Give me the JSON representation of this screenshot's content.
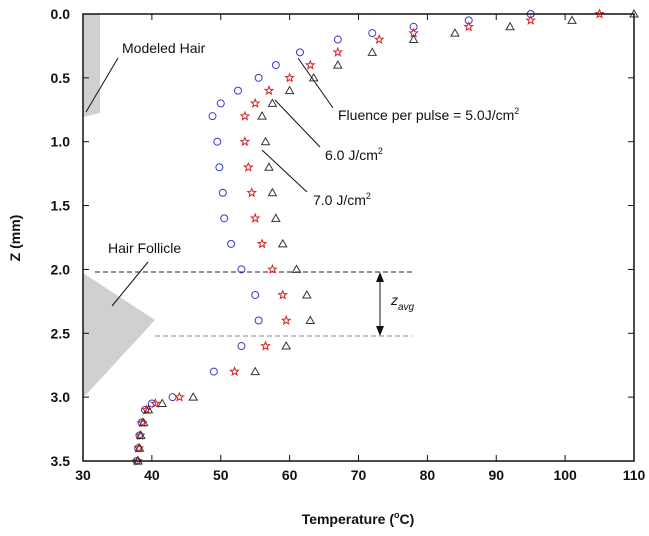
{
  "chart_data": {
    "type": "scatter",
    "x_label": {
      "text": "Temperature (",
      "sup": "o",
      "after": "C)"
    },
    "y_label": "Z (mm)",
    "xlim": [
      30,
      110
    ],
    "ylim": [
      0,
      3.5
    ],
    "y_inverted": true,
    "xticks": [
      30,
      40,
      50,
      60,
      70,
      80,
      90,
      100,
      110
    ],
    "yticks": [
      {
        "value": 0,
        "label": "0.0"
      },
      0.5,
      {
        "value": 1,
        "label": "1.0"
      },
      1.5,
      {
        "value": 2,
        "label": "2.0"
      },
      2.5,
      {
        "value": 3,
        "label": "3.0"
      },
      3.5
    ],
    "series": [
      {
        "color": "#3a3ad0",
        "marker": "circle",
        "x": [
          95,
          86,
          78,
          72,
          67,
          61.5,
          58,
          55.5,
          52.5,
          50,
          48.8,
          49.5,
          49.8,
          50.3,
          50.5,
          51.5,
          53,
          55,
          55.5,
          53,
          49,
          43,
          40,
          39,
          38.5,
          38.2,
          38,
          37.8
        ],
        "y": [
          0,
          0.05,
          0.1,
          0.15,
          0.2,
          0.3,
          0.4,
          0.5,
          0.6,
          0.7,
          0.8,
          1.0,
          1.2,
          1.4,
          1.6,
          1.8,
          2.0,
          2.2,
          2.4,
          2.6,
          2.8,
          3.0,
          3.05,
          3.1,
          3.2,
          3.3,
          3.4,
          3.5
        ]
      },
      {
        "color": "#d62020",
        "marker": "star",
        "x": [
          105,
          95,
          86,
          78,
          73,
          67,
          63,
          60,
          57,
          55,
          53.5,
          53.5,
          54,
          54.5,
          55,
          56,
          57.5,
          59,
          59.5,
          56.5,
          52,
          44,
          40.5,
          39.2,
          38.6,
          38.3,
          38.1,
          37.9
        ],
        "y": [
          0,
          0.05,
          0.1,
          0.15,
          0.2,
          0.3,
          0.4,
          0.5,
          0.6,
          0.7,
          0.8,
          1.0,
          1.2,
          1.4,
          1.6,
          1.8,
          2.0,
          2.2,
          2.4,
          2.6,
          2.8,
          3.0,
          3.05,
          3.1,
          3.2,
          3.3,
          3.4,
          3.5
        ]
      },
      {
        "color": "#333333",
        "marker": "triangle",
        "x": [
          110,
          101,
          92,
          84,
          78,
          72,
          67,
          63.5,
          60,
          57.5,
          56,
          56.5,
          57,
          57.5,
          58,
          59,
          61,
          62.5,
          63,
          59.5,
          55,
          46,
          41.5,
          39.5,
          38.8,
          38.4,
          38.2,
          38
        ],
        "y": [
          0,
          0.05,
          0.1,
          0.15,
          0.2,
          0.3,
          0.4,
          0.5,
          0.6,
          0.7,
          0.8,
          1.0,
          1.2,
          1.4,
          1.6,
          1.8,
          2.0,
          2.2,
          2.4,
          2.6,
          2.8,
          3.0,
          3.05,
          3.1,
          3.2,
          3.3,
          3.4,
          3.5
        ]
      }
    ],
    "annotations": [
      {
        "text": "Modeled Hair"
      },
      {
        "text": "Hair Follicle"
      },
      {
        "text": "Fluence per pulse = 5.0J/cm",
        "sup": "2"
      },
      {
        "text": "6.0 J/cm",
        "sup": "2"
      },
      {
        "text": "7.0 J/cm",
        "sup": "2"
      },
      {
        "text": "z",
        "sub": "avg"
      }
    ]
  }
}
